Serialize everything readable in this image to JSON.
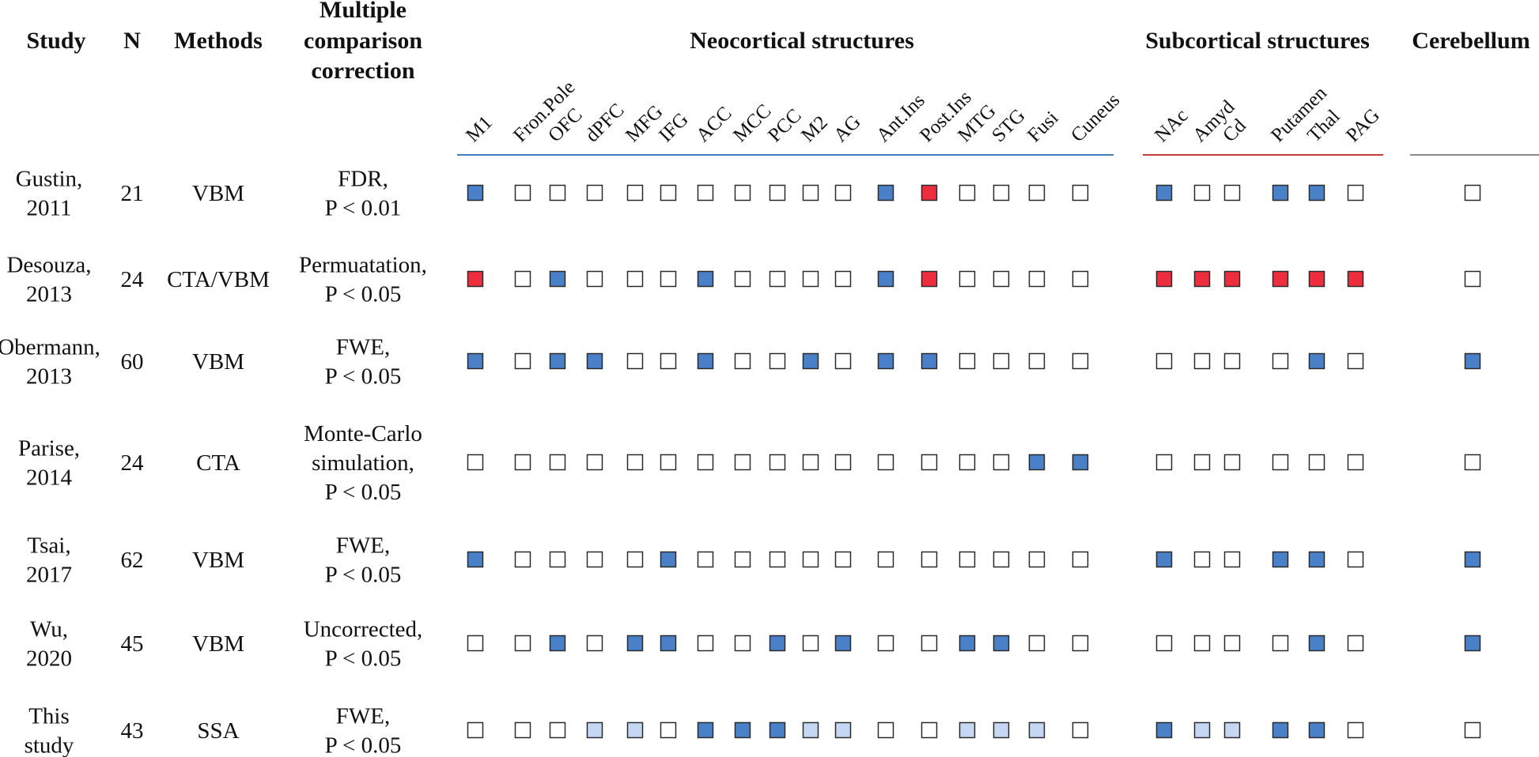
{
  "headers": {
    "study": "Study",
    "n": "N",
    "methods": "Methods",
    "correction": [
      "Multiple",
      "comparison",
      "correction"
    ],
    "neocortical": "Neocortical structures",
    "subcortical": "Subcortical structures",
    "cerebellum": "Cerebellum"
  },
  "colors": {
    "blue": "#4a80c8",
    "light_blue": "#c5d7f2",
    "red": "#ee2e3e",
    "empty": "#ffffff",
    "neocortical_line": "#3f7cb9",
    "subcortical_line": "#c93a3a",
    "cerebellum_line": "#8c8c8c"
  },
  "chart_data": {
    "type": "table",
    "legend_values": {
      "0": "empty",
      "1": "blue",
      "2": "light_blue",
      "3": "red"
    },
    "regions": {
      "neocortical": [
        "M1",
        "Fron.Pole",
        "OFC",
        "dPFC",
        "MFG",
        "IFG",
        "ACC",
        "MCC",
        "PCC",
        "M2",
        "AG",
        "Ant.Ins",
        "Post.Ins",
        "MTG",
        "STG",
        "Fusi",
        "Cuneus"
      ],
      "subcortical": [
        "NAc",
        "Amyd",
        "Cd",
        "Putamen",
        "Thal",
        "PAG"
      ],
      "cerebellum": [
        ""
      ]
    },
    "rows": [
      {
        "study": [
          "Gustin,",
          "2011"
        ],
        "n": "21",
        "method": "VBM",
        "correction": [
          "FDR,",
          "P < 0.01"
        ],
        "neocortical": [
          1,
          0,
          0,
          0,
          0,
          0,
          0,
          0,
          0,
          0,
          0,
          1,
          3,
          0,
          0,
          0,
          0
        ],
        "subcortical": [
          1,
          0,
          0,
          1,
          1,
          0
        ],
        "cerebellum": [
          0
        ]
      },
      {
        "study": [
          "Desouza,",
          "2013"
        ],
        "n": "24",
        "method": "CTA/VBM",
        "correction": [
          "Permuatation,",
          "P < 0.05"
        ],
        "neocortical": [
          3,
          0,
          1,
          0,
          0,
          0,
          1,
          0,
          0,
          0,
          0,
          1,
          3,
          0,
          0,
          0,
          0
        ],
        "subcortical": [
          3,
          3,
          3,
          3,
          3,
          3
        ],
        "cerebellum": [
          0
        ]
      },
      {
        "study": [
          "Obermann,",
          "2013"
        ],
        "n": "60",
        "method": "VBM",
        "correction": [
          "FWE,",
          "P < 0.05"
        ],
        "neocortical": [
          1,
          0,
          1,
          1,
          0,
          0,
          1,
          0,
          0,
          1,
          0,
          1,
          1,
          0,
          0,
          0,
          0
        ],
        "subcortical": [
          0,
          0,
          0,
          0,
          1,
          0
        ],
        "cerebellum": [
          1
        ]
      },
      {
        "study": [
          "Parise,",
          "2014"
        ],
        "n": "24",
        "method": "CTA",
        "correction": [
          "Monte-Carlo",
          "simulation,",
          "P < 0.05"
        ],
        "neocortical": [
          0,
          0,
          0,
          0,
          0,
          0,
          0,
          0,
          0,
          0,
          0,
          0,
          0,
          0,
          0,
          1,
          1
        ],
        "subcortical": [
          0,
          0,
          0,
          0,
          0,
          0
        ],
        "cerebellum": [
          0
        ]
      },
      {
        "study": [
          "Tsai,",
          "2017"
        ],
        "n": "62",
        "method": "VBM",
        "correction": [
          "FWE,",
          "P < 0.05"
        ],
        "neocortical": [
          1,
          0,
          0,
          0,
          0,
          1,
          0,
          0,
          0,
          0,
          0,
          0,
          0,
          0,
          0,
          0,
          0
        ],
        "subcortical": [
          1,
          0,
          0,
          1,
          1,
          0
        ],
        "cerebellum": [
          1
        ]
      },
      {
        "study": [
          "Wu,",
          "2020"
        ],
        "n": "45",
        "method": "VBM",
        "correction": [
          "Uncorrected,",
          "P < 0.05"
        ],
        "neocortical": [
          0,
          0,
          1,
          0,
          1,
          1,
          0,
          0,
          1,
          0,
          1,
          0,
          0,
          1,
          1,
          0,
          0
        ],
        "subcortical": [
          0,
          0,
          0,
          0,
          1,
          0
        ],
        "cerebellum": [
          1
        ]
      },
      {
        "study": [
          "This",
          "study"
        ],
        "n": "43",
        "method": "SSA",
        "correction": [
          "FWE,",
          "P < 0.05"
        ],
        "neocortical": [
          0,
          0,
          0,
          2,
          2,
          0,
          1,
          1,
          1,
          2,
          2,
          0,
          0,
          2,
          2,
          2,
          0
        ],
        "subcortical": [
          1,
          2,
          2,
          1,
          1,
          0
        ],
        "cerebellum": [
          0
        ]
      }
    ]
  }
}
